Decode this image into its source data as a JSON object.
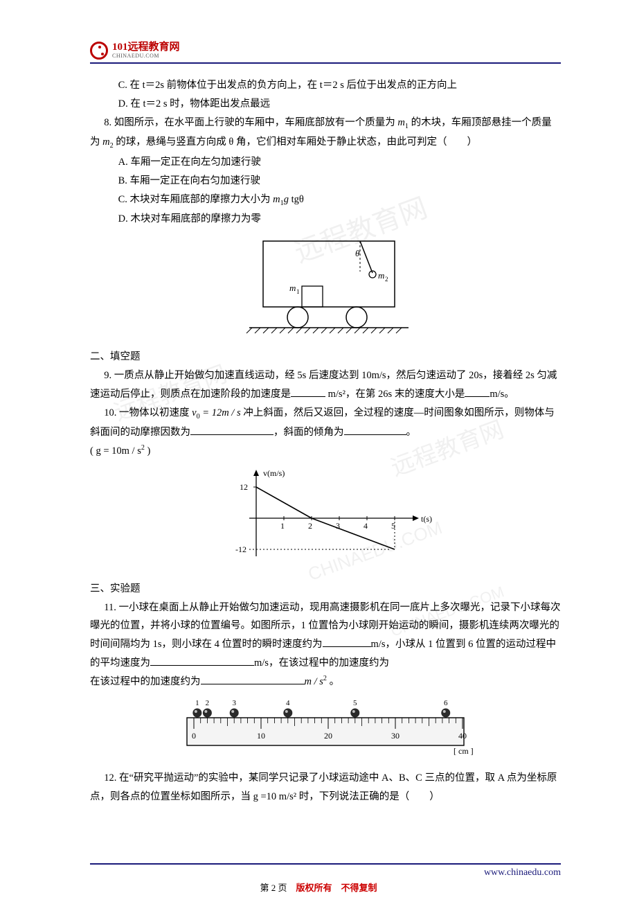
{
  "logo": {
    "title": "101远程教育网",
    "sub": "CHINAEDU.COM"
  },
  "q7": {
    "c": "C. 在 t＝2s 前物体位于出发点的负方向上，在 t＝2 s 后位于出发点的正方向上",
    "d": "D. 在 t＝2 s 时，物体距出发点最远"
  },
  "q8": {
    "stem_a": "8. 如图所示，在水平面上行驶的车厢中，车厢底部放有一个质量为 ",
    "stem_b": " 的木块，车厢顶部悬挂一个质量为 ",
    "stem_c": " 的球，悬绳与竖直方向成 θ 角，它们相对车厢处于静止状态，由此可判定（　　）",
    "a": "A. 车厢一定正在向左匀加速行驶",
    "b": "B. 车厢一定正在向右匀加速行驶",
    "c_pre": "C. 木块对车厢底部的摩擦力大小为 ",
    "c_post": " tgθ",
    "d": "D. 木块对车厢底部的摩擦力为零",
    "fig": {
      "m1": "m",
      "m1sub": "1",
      "m2": "m",
      "m2sub": "2",
      "theta": "θ"
    }
  },
  "sec2": "二、填空题",
  "q9": {
    "a": "9. 一质点从静止开始做匀加速直线运动，经 5s 后速度达到 10m/s，然后匀速运动了 20s，接着经 2s 匀减速运动后停止，则质点在加速阶段的加速度是",
    "unit1": " m/s²，在第 26s 末的速度大小是",
    "unit2": "m/s。"
  },
  "q10": {
    "a": "10. 一物体以初速度 ",
    "v0": "v",
    "v0sub": "0",
    "v0eq": " = 12m / s",
    "b": " 冲上斜面，然后又返回，全过程的速度—时间图象如图所示，则物体与斜面间的动摩擦因数为",
    "c": "，斜面的倾角为",
    "d": "。",
    "g_pre": "( g = 10m / s",
    "g_sup": "2",
    "g_post": " )",
    "chart": {
      "ylabel": "v(m/s)",
      "xlabel": "t(s)",
      "ytick_pos": "12",
      "ytick_neg": "-12",
      "xticks": [
        "1",
        "2",
        "3",
        "4",
        "5"
      ],
      "line_color": "#000000",
      "dash_color": "#666666",
      "bg": "#ffffff"
    }
  },
  "sec3": "三、实验题",
  "q11": {
    "a": "11. 一小球在桌面上从静止开始做匀加速运动，现用高速摄影机在同一底片上多次曝光，记录下小球每次曝光的位置，并将小球的位置编号。如图所示，1 位置恰为小球刚开始运动的瞬间，摄影机连续两次曝光的时间间隔均为 1s，则小球在 4 位置时的瞬时速度约为",
    "u1": "m/s，小球从 1 位置到 6 位置的运动过程中的平均速度为",
    "u2": "m/s，在该过程中的加速度约为",
    "u3_pre": "m / s",
    "u3_sup": "2",
    "u3_post": " 。",
    "ruler": {
      "ticks": [
        "0",
        "10",
        "20",
        "30",
        "40"
      ],
      "unit": "[ cm ]",
      "positions": [
        1,
        2,
        3,
        4,
        5,
        6
      ],
      "ball_x": [
        0.5,
        2,
        6,
        14,
        24,
        37.5
      ]
    }
  },
  "q12": {
    "a": "12. 在“研究平抛运动”的实验中，某同学只记录了小球运动途中 A、B、C 三点的位置，取 A 点为坐标原点，则各点的位置坐标如图所示，当 g =10 m/s² 时，下列说法正确的是（　　）"
  },
  "footer": {
    "url": "www.chinaedu.com",
    "page_a": "第 2 页　",
    "page_b": "版权所有　不得复制"
  },
  "watermarks": [
    "远程教育网",
    "远程教育网",
    "远程教育网",
    "CHINAEDU.COM",
    "CHINAEDU.COM"
  ]
}
